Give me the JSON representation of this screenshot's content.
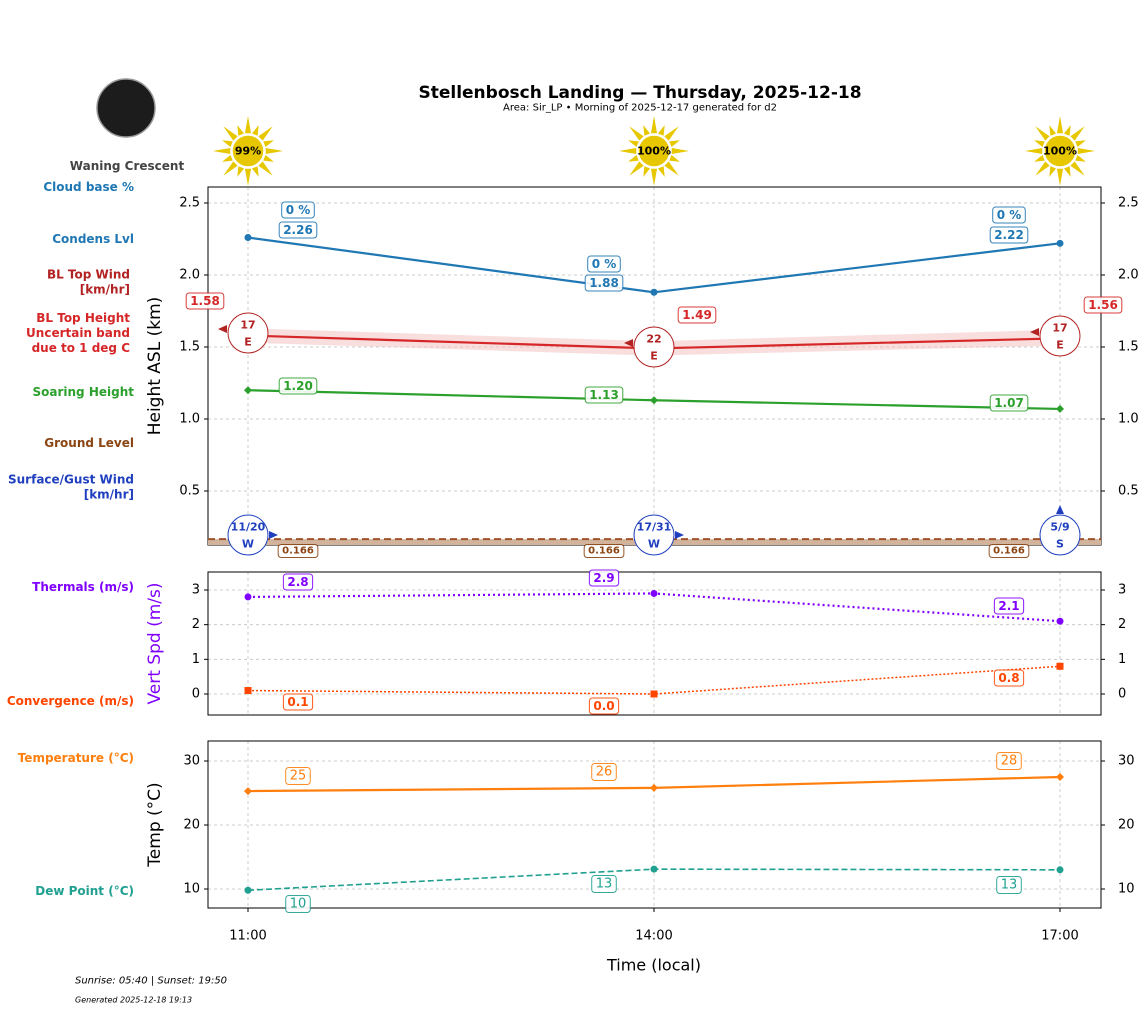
{
  "title": "Stellenbosch Landing — Thursday, 2025-12-18",
  "subtitle": "Area: Sir_LP • Morning of 2025-12-17 generated for d2",
  "moon": {
    "phase": "Waning Crescent",
    "icon": "moon-icon"
  },
  "sun": {
    "icon": "sun-icon",
    "labels": [
      "99%",
      "100%",
      "100%"
    ],
    "color": "#e6c700"
  },
  "left_labels": [
    {
      "text": "Cloud base %",
      "color": "#1f77b4"
    },
    {
      "text": "Condens Lvl",
      "color": "#1f77b4"
    },
    {
      "text": "BL Top Wind\n[km/hr]",
      "color": "#b22222"
    },
    {
      "text": "BL Top Height\nUncertain band\ndue to 1 deg C",
      "color": "#d62728"
    },
    {
      "text": "Soaring Height",
      "color": "#2ca02c"
    },
    {
      "text": "Ground Level",
      "color": "#8b4513"
    },
    {
      "text": "Surface/Gust Wind\n[km/hr]",
      "color": "#1f3fbf"
    },
    {
      "text": "Thermals (m/s)",
      "color": "#8000ff"
    },
    {
      "text": "Convergence (m/s)",
      "color": "#ff4500"
    },
    {
      "text": "Temperature (°C)",
      "color": "#ff7f0e"
    },
    {
      "text": "Dew Point (°C)",
      "color": "#20a090"
    }
  ],
  "footer": {
    "sun_times": "Sunrise: 05:40 | Sunset: 19:50",
    "generated": "Generated 2025-12-18 19:13"
  },
  "chart_data": [
    {
      "type": "line",
      "x": [
        "11:00",
        "14:00",
        "17:00"
      ],
      "ylabel": "Height ASL (km)",
      "ylim": [
        0.125,
        2.61
      ],
      "yticks": [
        "0.5",
        "1.0",
        "1.5",
        "2.0",
        "2.5"
      ],
      "grid": true,
      "series": [
        {
          "name": "Condens Lvl",
          "values": [
            2.26,
            1.88,
            2.22
          ],
          "labels": [
            "2.26",
            "1.88",
            "2.22"
          ],
          "color": "#1f77b4"
        },
        {
          "name": "Cloud base %",
          "labels": [
            "0 %",
            "0 %",
            "0 %"
          ],
          "color": "#1f77b4"
        },
        {
          "name": "BL Top Height",
          "values": [
            1.58,
            1.49,
            1.56
          ],
          "labels": [
            "1.58",
            "1.49",
            "1.56"
          ],
          "band": [
            [
              1.53,
              1.63
            ],
            [
              1.44,
              1.54
            ],
            [
              1.51,
              1.62
            ]
          ],
          "color": "#d62728"
        },
        {
          "name": "Soaring Height",
          "values": [
            1.2,
            1.13,
            1.07
          ],
          "labels": [
            "1.20",
            "1.13",
            "1.07"
          ],
          "color": "#2ca02c"
        },
        {
          "name": "Ground Level",
          "values": [
            0.166,
            0.166,
            0.166
          ],
          "labels": [
            "0.166",
            "0.166",
            "0.166"
          ],
          "color": "#8b4513"
        }
      ],
      "bl_top_wind": [
        {
          "speed": "17",
          "dir": "E"
        },
        {
          "speed": "22",
          "dir": "E"
        },
        {
          "speed": "17",
          "dir": "E"
        }
      ],
      "surface_wind": [
        {
          "speed": "11/20",
          "dir": "W"
        },
        {
          "speed": "17/31",
          "dir": "W"
        },
        {
          "speed": "5/9",
          "dir": "S"
        }
      ]
    },
    {
      "type": "line",
      "x": [
        "11:00",
        "14:00",
        "17:00"
      ],
      "ylabel": "Vert Spd (m/s)",
      "ylim": [
        -0.6,
        3.52
      ],
      "yticks": [
        "0",
        "1",
        "2",
        "3"
      ],
      "grid": true,
      "series": [
        {
          "name": "Thermals (m/s)",
          "values": [
            2.8,
            2.9,
            2.1
          ],
          "labels": [
            "2.8",
            "2.9",
            "2.1"
          ],
          "color": "#8000ff"
        },
        {
          "name": "Convergence (m/s)",
          "values": [
            0.1,
            0.0,
            0.8
          ],
          "labels": [
            "0.1",
            "0.0",
            "0.8"
          ],
          "color": "#ff4500"
        }
      ]
    },
    {
      "type": "line",
      "x": [
        "11:00",
        "14:00",
        "17:00"
      ],
      "xlabel": "Time (local)",
      "ylabel": "Temp (°C)",
      "ylim": [
        7.0,
        33.1
      ],
      "yticks": [
        "10",
        "20",
        "30"
      ],
      "grid": true,
      "series": [
        {
          "name": "Temperature (°C)",
          "values": [
            25.3,
            25.8,
            27.5
          ],
          "labels": [
            "25",
            "26",
            "28"
          ],
          "color": "#ff7f0e"
        },
        {
          "name": "Dew Point (°C)",
          "values": [
            9.8,
            13.1,
            13.0
          ],
          "labels": [
            "10",
            "13",
            "13"
          ],
          "color": "#20a090"
        }
      ]
    }
  ]
}
